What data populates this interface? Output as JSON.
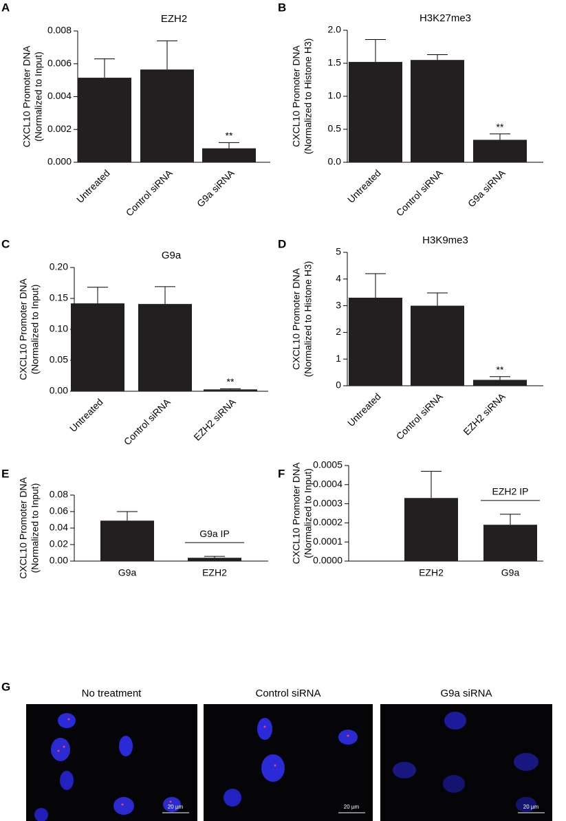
{
  "chart_data": [
    {
      "type": "bar",
      "panel": "A",
      "title": "EZH2",
      "ylabel": [
        "CXCL10 Promoter DNA",
        "(Normalized to Input)"
      ],
      "categories": [
        "Untreated",
        "Control siRNA",
        "G9a siRNA"
      ],
      "values": [
        0.00515,
        0.00565,
        0.00085
      ],
      "errors": [
        0.00115,
        0.00175,
        0.00035
      ],
      "significance": [
        null,
        null,
        "**"
      ],
      "color": "#231f20",
      "ylim": [
        0,
        0.008
      ],
      "yticks": [
        {
          "value": 0,
          "label": "0.000"
        },
        {
          "value": 0.002,
          "label": "0.002"
        },
        {
          "value": 0.004,
          "label": "0.004"
        },
        {
          "value": 0.006,
          "label": "0.006"
        },
        {
          "value": 0.008,
          "label": "0.008"
        }
      ],
      "rotated_labels": true
    },
    {
      "type": "bar",
      "panel": "B",
      "title": "H3K27me3",
      "ylabel": [
        "CXCL10 Promoter DNA",
        "(Normalized to Histone H3)"
      ],
      "categories": [
        "Untreated",
        "Control siRNA",
        "G9a siRNA"
      ],
      "values": [
        1.52,
        1.55,
        0.34
      ],
      "errors": [
        0.34,
        0.08,
        0.09
      ],
      "significance": [
        null,
        null,
        "**"
      ],
      "color": "#231f20",
      "ylim": [
        0,
        2
      ],
      "yticks": [
        {
          "value": 0,
          "label": "0.0"
        },
        {
          "value": 0.5,
          "label": "0.5"
        },
        {
          "value": 1,
          "label": "1.0"
        },
        {
          "value": 1.5,
          "label": "1.5"
        },
        {
          "value": 2,
          "label": "2.0"
        }
      ],
      "rotated_labels": true
    },
    {
      "type": "bar",
      "panel": "C",
      "title": "G9a",
      "ylabel": [
        "CXCL10 Promoter DNA",
        "(Normalized to Input)"
      ],
      "categories": [
        "Untreated",
        "Control siRNA",
        "EZH2 siRNA"
      ],
      "values": [
        0.142,
        0.141,
        0.003
      ],
      "errors": [
        0.026,
        0.028,
        0.001
      ],
      "significance": [
        null,
        null,
        "**"
      ],
      "color": "#231f20",
      "ylim": [
        0,
        0.2
      ],
      "yticks": [
        {
          "value": 0,
          "label": "0.00"
        },
        {
          "value": 0.05,
          "label": "0.05"
        },
        {
          "value": 0.1,
          "label": "0.10"
        },
        {
          "value": 0.15,
          "label": "0.15"
        },
        {
          "value": 0.2,
          "label": "0.20"
        }
      ],
      "rotated_labels": true
    },
    {
      "type": "bar",
      "panel": "D",
      "title": "H3K9me3",
      "ylabel": [
        "CXCL10 Promoter DNA",
        "(Normalized to Histone H3)"
      ],
      "categories": [
        "Untreated",
        "Control siRNA",
        "EZH2 siRNA"
      ],
      "values": [
        3.3,
        3.0,
        0.22
      ],
      "errors": [
        0.9,
        0.48,
        0.12
      ],
      "significance": [
        null,
        null,
        "**"
      ],
      "color": "#231f20",
      "ylim": [
        0,
        5
      ],
      "yticks": [
        0,
        1,
        2,
        3,
        4,
        5
      ],
      "rotated_labels": true
    },
    {
      "type": "bar",
      "panel": "E",
      "ylabel": [
        "CXCL10 Promoter DNA",
        "(Normalized to Input)"
      ],
      "categories": [
        "G9a",
        "EZH2"
      ],
      "values": [
        0.049,
        0.004
      ],
      "errors": [
        0.011,
        0.0017
      ],
      "annotation": "G9a IP",
      "color": "#231f20",
      "ylim": [
        0,
        0.08
      ],
      "yticks": [
        {
          "value": 0,
          "label": "0.00"
        },
        {
          "value": 0.02,
          "label": "0.02"
        },
        {
          "value": 0.04,
          "label": "0.04"
        },
        {
          "value": 0.06,
          "label": "0.06"
        },
        {
          "value": 0.08,
          "label": "0.08"
        }
      ],
      "rotated_labels": false
    },
    {
      "type": "bar",
      "panel": "F",
      "ylabel": [
        "CXCL10 Promoter DNA",
        "(Normalized to Input)"
      ],
      "categories": [
        "EZH2",
        "G9a"
      ],
      "values": [
        0.00033,
        0.00019
      ],
      "errors": [
        0.00014,
        5.5e-05
      ],
      "annotation": "EZH2 IP",
      "color": "#231f20",
      "ylim": [
        0,
        0.0005
      ],
      "yticks": [
        {
          "value": 0,
          "label": "0.0000"
        },
        {
          "value": 0.0001,
          "label": "0.0001"
        },
        {
          "value": 0.0002,
          "label": "0.0002"
        },
        {
          "value": 0.0003,
          "label": "0.0003"
        },
        {
          "value": 0.0004,
          "label": "0.0004"
        },
        {
          "value": 0.0005,
          "label": "0.0005"
        }
      ],
      "rotated_labels": false
    }
  ],
  "figure_g": {
    "panel": "G",
    "images": [
      {
        "title": "No treatment",
        "scale_bar": "20 µm"
      },
      {
        "title": "Control siRNA",
        "scale_bar": "20 µm"
      },
      {
        "title": "G9a siRNA",
        "scale_bar": "20 µm"
      }
    ]
  }
}
